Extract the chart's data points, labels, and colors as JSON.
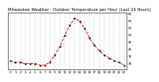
{
  "title": "Milwaukee Weather - Outdoor Temperature per Hour (Last 24 Hours)",
  "hours": [
    0,
    1,
    2,
    3,
    4,
    5,
    6,
    7,
    8,
    9,
    10,
    11,
    12,
    13,
    14,
    15,
    16,
    17,
    18,
    19,
    20,
    21,
    22,
    23
  ],
  "temps": [
    32,
    31,
    31,
    30,
    30,
    30,
    29,
    29,
    31,
    36,
    42,
    50,
    57,
    62,
    60,
    55,
    48,
    43,
    39,
    36,
    34,
    32,
    31,
    29
  ],
  "line_color": "#dd0000",
  "marker_color": "#000000",
  "bg_color": "#ffffff",
  "grid_color": "#bbbbbb",
  "ylim": [
    26,
    66
  ],
  "ytick_values": [
    30,
    35,
    40,
    45,
    50,
    55,
    60,
    65
  ],
  "ytick_labels": [
    "30",
    "35",
    "40",
    "45",
    "50",
    "55",
    "60",
    "65"
  ],
  "title_fontsize": 3.8,
  "tick_fontsize": 3.0,
  "linewidth": 0.7,
  "markersize": 1.0
}
